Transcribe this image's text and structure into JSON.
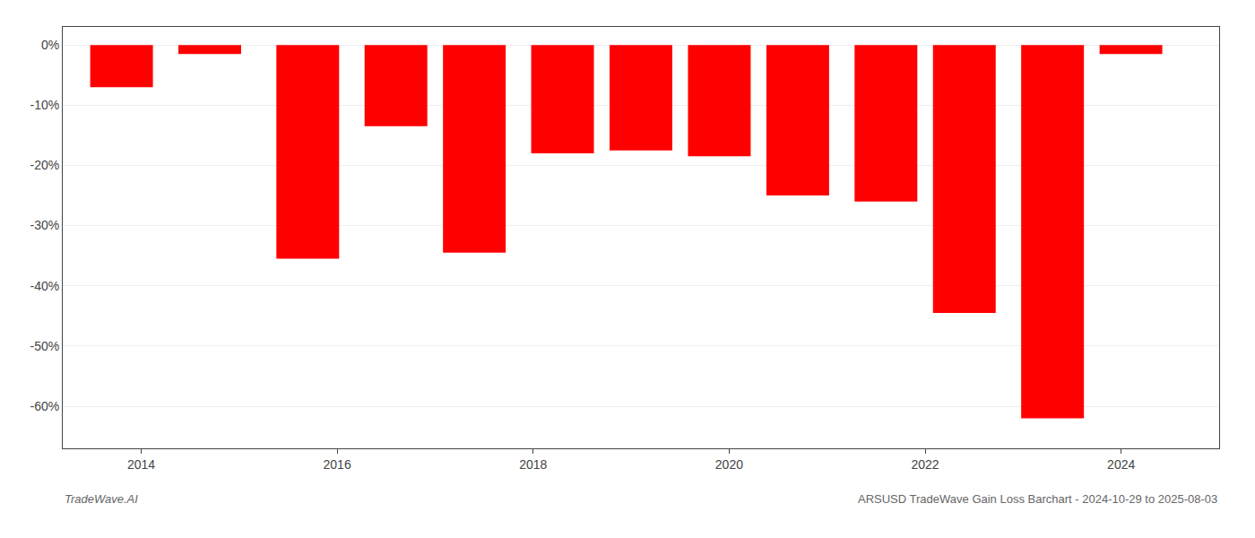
{
  "chart_data": {
    "type": "bar",
    "x": [
      2013.3,
      2014.2,
      2015.2,
      2016.1,
      2016.9,
      2017.8,
      2018.6,
      2019.4,
      2020.2,
      2021.1,
      2021.9,
      2022.8,
      2023.6
    ],
    "values": [
      -7.0,
      -1.5,
      -35.5,
      -13.5,
      -34.5,
      -18.0,
      -17.5,
      -18.5,
      -25.0,
      -26.0,
      -44.5,
      -62.0,
      -1.5
    ],
    "color": "#ff0000",
    "xlim": [
      2012.7,
      2024.5
    ],
    "xticks": [
      {
        "value": 2013.5,
        "label": "2014"
      },
      {
        "value": 2015.5,
        "label": "2016"
      },
      {
        "value": 2017.5,
        "label": "2018"
      },
      {
        "value": 2019.5,
        "label": "2020"
      },
      {
        "value": 2021.5,
        "label": "2022"
      },
      {
        "value": 2023.5,
        "label": "2024"
      }
    ],
    "ylim": [
      -67,
      3
    ],
    "yticks": [
      {
        "value": 0,
        "label": "0%"
      },
      {
        "value": -10,
        "label": "-10%"
      },
      {
        "value": -20,
        "label": "-20%"
      },
      {
        "value": -30,
        "label": "-30%"
      },
      {
        "value": -40,
        "label": "-40%"
      },
      {
        "value": -50,
        "label": "-50%"
      },
      {
        "value": -60,
        "label": "-60%"
      }
    ],
    "grid": true,
    "annotations": [
      "TradeWave.AI",
      "ARSUSD TradeWave Gain Loss Barchart - 2024-10-29 to 2025-08-03"
    ]
  }
}
